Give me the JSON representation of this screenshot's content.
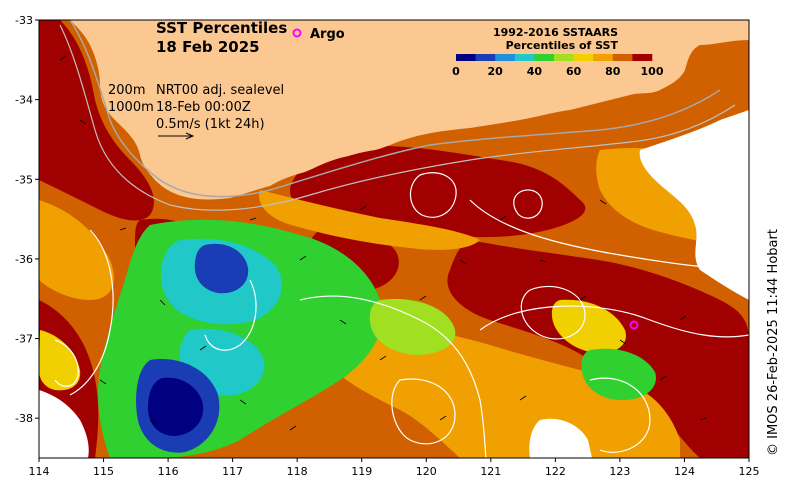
{
  "title": {
    "line1": "SST Percentiles",
    "line2": "18 Feb 2025"
  },
  "legend_marker": {
    "label": "Argo",
    "color": "#ff00ff"
  },
  "colorbar": {
    "title_line1": "1992-2016 SSTAARS",
    "title_line2": "Percentiles of SST",
    "ticks": [
      "0",
      "20",
      "40",
      "60",
      "80",
      "100"
    ],
    "colors": [
      "#000080",
      "#1a3cb4",
      "#1e90dc",
      "#20c8c8",
      "#30d030",
      "#a0e020",
      "#f0d000",
      "#f0a000",
      "#d06000",
      "#a00000"
    ]
  },
  "info": {
    "depth_200": "200m",
    "depth_1000": "1000m",
    "product": "NRT00 adj. sealevel",
    "datetime": "18-Feb 00:00Z",
    "vector_scale": "0.5m/s (1kt 24h)"
  },
  "credit": "© IMOS 26-Feb-2025 11:44 Hobart",
  "axes": {
    "x_ticks": [
      "114",
      "115",
      "116",
      "117",
      "118",
      "119",
      "120",
      "121",
      "122",
      "123",
      "124",
      "125"
    ],
    "y_ticks": [
      "-33",
      "-34",
      "-35",
      "-36",
      "-37",
      "-38"
    ],
    "xlim": [
      114,
      125
    ],
    "ylim": [
      -38.5,
      -33
    ]
  },
  "colors": {
    "land": "#fbc891",
    "hot": "#a00000",
    "warm": "#d06000",
    "orange": "#f0a000",
    "yellow": "#f0d000",
    "green": "#30d030",
    "cyan": "#20c8c8",
    "blue": "#1a3cb4",
    "navy": "#000080",
    "nodata": "#ffffff"
  }
}
